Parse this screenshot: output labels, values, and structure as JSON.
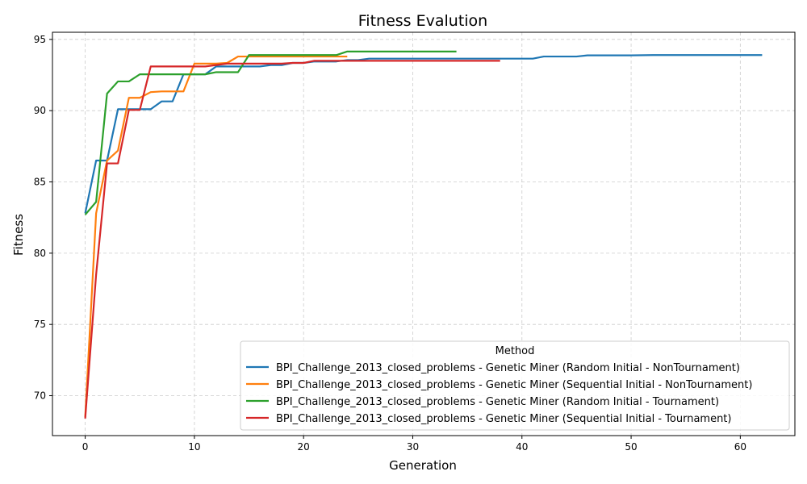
{
  "chart_data": {
    "type": "line",
    "title": "Fitness Evalution",
    "xlabel": "Generation",
    "ylabel": "Fitness",
    "xlim": [
      -3,
      65
    ],
    "ylim": [
      67.2,
      95.5
    ],
    "xticks": [
      0,
      10,
      20,
      30,
      40,
      50,
      60
    ],
    "yticks": [
      70,
      75,
      80,
      85,
      90,
      95
    ],
    "grid": true,
    "legend": {
      "title": "Method",
      "placement": "lower-right"
    },
    "series": [
      {
        "name": "BPI_Challenge_2013_closed_problems - Genetic Miner (Random Initial - NonTournament)",
        "color": "#1f77b4",
        "points": [
          [
            0,
            82.8
          ],
          [
            1,
            86.5
          ],
          [
            2,
            86.5
          ],
          [
            3,
            90.1
          ],
          [
            4,
            90.1
          ],
          [
            5,
            90.1
          ],
          [
            6,
            90.1
          ],
          [
            7,
            90.65
          ],
          [
            8,
            90.65
          ],
          [
            9,
            92.55
          ],
          [
            10,
            92.55
          ],
          [
            11,
            92.55
          ],
          [
            12,
            93.1
          ],
          [
            13,
            93.1
          ],
          [
            14,
            93.1
          ],
          [
            15,
            93.1
          ],
          [
            16,
            93.1
          ],
          [
            17,
            93.2
          ],
          [
            18,
            93.2
          ],
          [
            19,
            93.35
          ],
          [
            20,
            93.35
          ],
          [
            21,
            93.45
          ],
          [
            22,
            93.45
          ],
          [
            23,
            93.45
          ],
          [
            24,
            93.55
          ],
          [
            25,
            93.55
          ],
          [
            26,
            93.65
          ],
          [
            27,
            93.65
          ],
          [
            28,
            93.65
          ],
          [
            29,
            93.65
          ],
          [
            30,
            93.65
          ],
          [
            35,
            93.65
          ],
          [
            40,
            93.65
          ],
          [
            41,
            93.65
          ],
          [
            42,
            93.8
          ],
          [
            43,
            93.8
          ],
          [
            44,
            93.8
          ],
          [
            45,
            93.8
          ],
          [
            46,
            93.88
          ],
          [
            50,
            93.88
          ],
          [
            52,
            93.9
          ],
          [
            55,
            93.9
          ],
          [
            60,
            93.9
          ],
          [
            62,
            93.9
          ]
        ]
      },
      {
        "name": "BPI_Challenge_2013_closed_problems - Genetic Miner (Sequential Initial - NonTournament)",
        "color": "#ff7f0e",
        "points": [
          [
            0,
            68.5
          ],
          [
            1,
            82.8
          ],
          [
            2,
            86.5
          ],
          [
            3,
            87.2
          ],
          [
            4,
            90.9
          ],
          [
            5,
            90.9
          ],
          [
            6,
            91.3
          ],
          [
            7,
            91.35
          ],
          [
            8,
            91.35
          ],
          [
            9,
            91.35
          ],
          [
            10,
            93.3
          ],
          [
            11,
            93.3
          ],
          [
            12,
            93.3
          ],
          [
            13,
            93.35
          ],
          [
            14,
            93.8
          ],
          [
            15,
            93.8
          ],
          [
            16,
            93.8
          ],
          [
            17,
            93.8
          ],
          [
            18,
            93.8
          ],
          [
            19,
            93.8
          ],
          [
            20,
            93.8
          ],
          [
            21,
            93.8
          ],
          [
            22,
            93.8
          ],
          [
            23,
            93.8
          ],
          [
            24,
            93.8
          ]
        ]
      },
      {
        "name": "BPI_Challenge_2013_closed_problems - Genetic Miner (Random Initial - Tournament)",
        "color": "#2ca02c",
        "points": [
          [
            0,
            82.7
          ],
          [
            1,
            83.6
          ],
          [
            2,
            91.2
          ],
          [
            3,
            92.05
          ],
          [
            4,
            92.05
          ],
          [
            5,
            92.55
          ],
          [
            6,
            92.55
          ],
          [
            7,
            92.55
          ],
          [
            8,
            92.55
          ],
          [
            9,
            92.55
          ],
          [
            10,
            92.55
          ],
          [
            11,
            92.55
          ],
          [
            12,
            92.7
          ],
          [
            13,
            92.7
          ],
          [
            14,
            92.7
          ],
          [
            15,
            93.9
          ],
          [
            16,
            93.9
          ],
          [
            17,
            93.9
          ],
          [
            18,
            93.9
          ],
          [
            19,
            93.9
          ],
          [
            20,
            93.9
          ],
          [
            21,
            93.9
          ],
          [
            22,
            93.9
          ],
          [
            23,
            93.9
          ],
          [
            24,
            94.15
          ],
          [
            25,
            94.15
          ],
          [
            30,
            94.15
          ],
          [
            34,
            94.15
          ]
        ]
      },
      {
        "name": "BPI_Challenge_2013_closed_problems - Genetic Miner (Sequential Initial - Tournament)",
        "color": "#d62728",
        "points": [
          [
            0,
            68.4
          ],
          [
            1,
            78.5
          ],
          [
            2,
            86.3
          ],
          [
            3,
            86.3
          ],
          [
            4,
            90.05
          ],
          [
            5,
            90.05
          ],
          [
            6,
            93.1
          ],
          [
            7,
            93.1
          ],
          [
            8,
            93.1
          ],
          [
            9,
            93.1
          ],
          [
            10,
            93.1
          ],
          [
            11,
            93.1
          ],
          [
            12,
            93.2
          ],
          [
            13,
            93.3
          ],
          [
            14,
            93.3
          ],
          [
            15,
            93.3
          ],
          [
            16,
            93.3
          ],
          [
            17,
            93.3
          ],
          [
            18,
            93.3
          ],
          [
            19,
            93.35
          ],
          [
            20,
            93.35
          ],
          [
            21,
            93.5
          ],
          [
            22,
            93.5
          ],
          [
            23,
            93.5
          ],
          [
            24,
            93.5
          ],
          [
            25,
            93.5
          ],
          [
            30,
            93.5
          ],
          [
            35,
            93.5
          ],
          [
            38,
            93.5
          ]
        ]
      }
    ]
  }
}
